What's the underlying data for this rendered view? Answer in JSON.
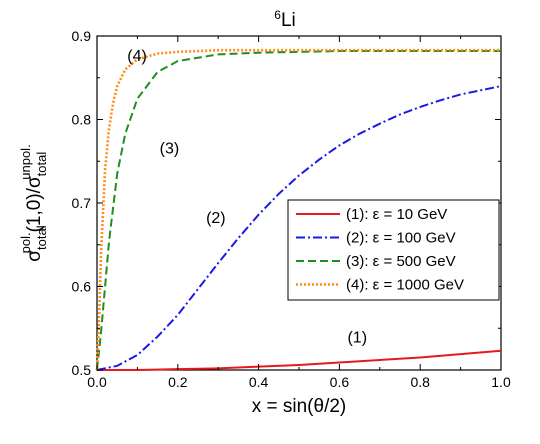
{
  "chart_data": {
    "type": "line",
    "title_sup": "6",
    "title_main": "Li",
    "xlabel": "x = sin(θ/2)",
    "ylabel": {
      "sigma1": "σ",
      "sub1": "total",
      "sup1": "pol.",
      "mid": "(1,0)/",
      "sigma2": "σ",
      "sub2": "total",
      "sup2": "unpol."
    },
    "xlim": [
      0.0,
      1.0
    ],
    "ylim": [
      0.5,
      0.9
    ],
    "xticks": [
      "0.0",
      "0.2",
      "0.4",
      "0.6",
      "0.8",
      "1.0"
    ],
    "xtick_values": [
      0.0,
      0.2,
      0.4,
      0.6,
      0.8,
      1.0
    ],
    "yticks": [
      "0.5",
      "0.6",
      "0.7",
      "0.8",
      "0.9"
    ],
    "ytick_values": [
      0.5,
      0.6,
      0.7,
      0.8,
      0.9
    ],
    "grid": false,
    "legend_placement": "right",
    "series": [
      {
        "name": "(1): ε = 10 GeV",
        "color": "#e8191c",
        "dash": "solid",
        "x": [
          0.0,
          0.1,
          0.2,
          0.3,
          0.4,
          0.5,
          0.6,
          0.7,
          0.8,
          0.9,
          1.0
        ],
        "y": [
          0.5,
          0.5,
          0.501,
          0.502,
          0.504,
          0.506,
          0.509,
          0.512,
          0.515,
          0.519,
          0.523
        ]
      },
      {
        "name": "(2): ε = 100 GeV",
        "color": "#1a1ae6",
        "dash": "dashdot",
        "x": [
          0.0,
          0.05,
          0.1,
          0.15,
          0.2,
          0.25,
          0.3,
          0.35,
          0.4,
          0.45,
          0.5,
          0.55,
          0.6,
          0.65,
          0.7,
          0.75,
          0.8,
          0.85,
          0.9,
          0.95,
          1.0
        ],
        "y": [
          0.5,
          0.505,
          0.518,
          0.54,
          0.566,
          0.597,
          0.628,
          0.658,
          0.686,
          0.711,
          0.733,
          0.752,
          0.769,
          0.783,
          0.795,
          0.806,
          0.815,
          0.823,
          0.83,
          0.835,
          0.84
        ]
      },
      {
        "name": "(3): ε = 500 GeV",
        "color": "#1f8f1f",
        "dash": "dashed",
        "x": [
          0.0,
          0.01,
          0.02,
          0.03,
          0.05,
          0.07,
          0.1,
          0.15,
          0.2,
          0.3,
          0.4,
          0.5,
          0.6,
          0.7,
          0.8,
          0.9,
          1.0
        ],
        "y": [
          0.5,
          0.545,
          0.6,
          0.655,
          0.735,
          0.783,
          0.825,
          0.857,
          0.87,
          0.878,
          0.88,
          0.881,
          0.882,
          0.882,
          0.882,
          0.882,
          0.882
        ]
      },
      {
        "name": "(4): ε = 1000 GeV",
        "color": "#ff8c1a",
        "dash": "dotted",
        "x": [
          0.0,
          0.005,
          0.01,
          0.02,
          0.03,
          0.04,
          0.05,
          0.07,
          0.1,
          0.15,
          0.2,
          0.3,
          0.4,
          0.6,
          0.8,
          1.0
        ],
        "y": [
          0.5,
          0.56,
          0.64,
          0.74,
          0.79,
          0.82,
          0.84,
          0.86,
          0.872,
          0.879,
          0.881,
          0.883,
          0.883,
          0.883,
          0.883,
          0.883
        ]
      }
    ],
    "annotations": [
      {
        "text": "(1)",
        "x": 0.62,
        "y": 0.533
      },
      {
        "text": "(2)",
        "x": 0.27,
        "y": 0.676
      },
      {
        "text": "(3)",
        "x": 0.155,
        "y": 0.759
      },
      {
        "text": "(4)",
        "x": 0.075,
        "y": 0.87
      }
    ]
  }
}
